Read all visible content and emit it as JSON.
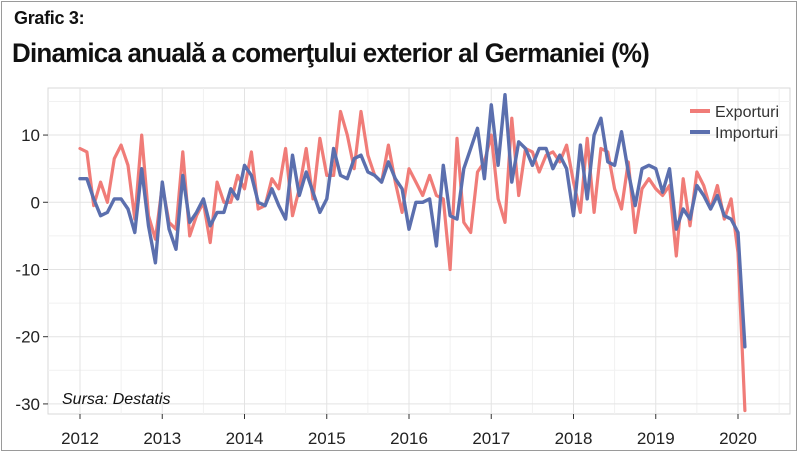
{
  "header": {
    "label": "Grafic 3:",
    "title": "Dinamica anuală a comerţului exterior al Germaniei (%)"
  },
  "source": "Sursa: Destatis",
  "colors": {
    "exports": "#f07c78",
    "imports": "#5b6fae"
  },
  "chart_data": {
    "type": "line",
    "title": "Dinamica anuală a comerţului exterior al Germaniei (%)",
    "xlabel": "",
    "ylabel": "",
    "x_start": "2012-01",
    "x_ticks": [
      "2012",
      "2013",
      "2014",
      "2015",
      "2016",
      "2017",
      "2018",
      "2019",
      "2020"
    ],
    "y_ticks": [
      10,
      0,
      -10,
      -20,
      -30
    ],
    "ylim": [
      -31.5,
      17
    ],
    "grid": true,
    "legend_position": "top-right",
    "series": [
      {
        "name": "Exporturi",
        "color": "#f07c78",
        "values": [
          8,
          7.5,
          -0.5,
          3,
          0,
          6.5,
          8.5,
          5.5,
          -2.5,
          10,
          -2,
          -5.5,
          2.5,
          -3,
          -4,
          7.5,
          -5,
          -2,
          0,
          -6,
          3,
          0,
          0,
          4,
          2,
          7.5,
          -1,
          -0.5,
          3.5,
          2,
          8,
          -2,
          2,
          8,
          0.5,
          9.5,
          4,
          4,
          13.5,
          10,
          5,
          13.5,
          7,
          4,
          3,
          8.5,
          3,
          -1.5,
          5,
          3,
          1,
          4,
          1,
          0.5,
          -10,
          9.5,
          -3,
          -4.5,
          4.5,
          6,
          10,
          0.5,
          -3,
          12.5,
          1,
          8,
          7.5,
          4.5,
          7,
          7.5,
          6,
          8.5,
          3,
          -1.5,
          9.5,
          -1.5,
          8,
          7.5,
          2,
          -1,
          6,
          -4.5,
          2,
          3.5,
          2,
          1,
          2.5,
          -8,
          3.5,
          -3.5,
          4.5,
          2.5,
          -1,
          2.5,
          -2.5,
          0.5,
          -7.5,
          -31
        ]
      },
      {
        "name": "Importuri",
        "color": "#5b6fae",
        "values": [
          3.5,
          3.5,
          0.5,
          -2,
          -1.5,
          0.5,
          0.5,
          -1,
          -4.5,
          5,
          -3.5,
          -9,
          3,
          -4,
          -7,
          4,
          -3,
          -1.5,
          0.5,
          -3.5,
          -1.5,
          -1.5,
          2,
          0.5,
          5.5,
          4,
          0,
          -0.5,
          2,
          -0.5,
          -2.5,
          7,
          1,
          4.5,
          1.5,
          -1.5,
          0.5,
          8,
          4,
          3.5,
          6.5,
          7,
          4.5,
          4,
          3,
          6,
          3.5,
          2,
          -4,
          0,
          0,
          0.5,
          -6.5,
          5.5,
          -2,
          -2.5,
          5,
          8,
          11,
          3.5,
          14.5,
          5.5,
          16,
          3,
          9,
          8,
          5.5,
          8,
          8,
          5,
          7,
          5,
          -2,
          8.5,
          0.5,
          10,
          12.5,
          6,
          5.5,
          10.5,
          4.5,
          -0.5,
          5,
          5.5,
          5,
          1.5,
          5,
          -4,
          -1,
          -2.5,
          2.5,
          1,
          -1,
          1,
          -2,
          -2.5,
          -4.5,
          -21.5
        ]
      }
    ]
  }
}
